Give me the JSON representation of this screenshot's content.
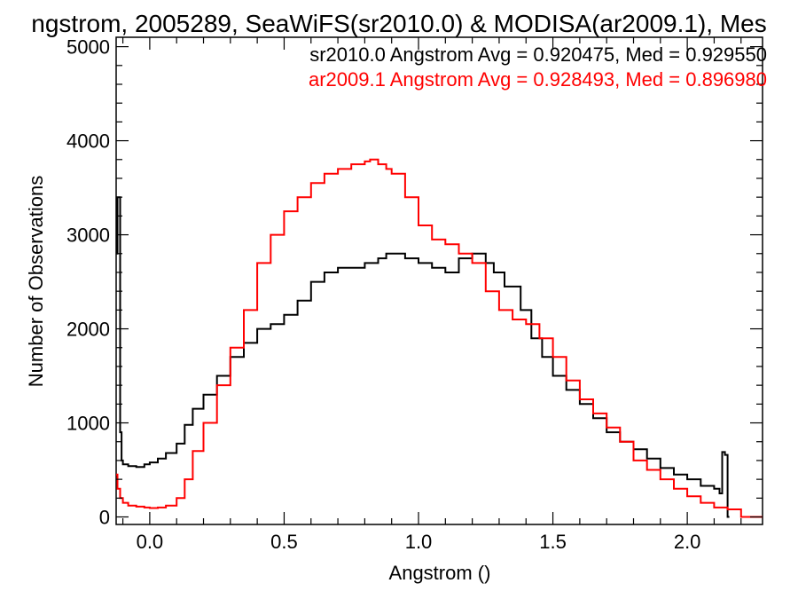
{
  "chart_data": {
    "type": "line",
    "title": "ngstrom, 2005289, SeaWiFS(sr2010.0) & MODISA(ar2009.1), Mes",
    "xlabel": "Angstrom ()",
    "ylabel": "Number of Observations",
    "xlim": [
      -0.125,
      2.28
    ],
    "ylim": [
      -80,
      5100
    ],
    "xticks": [
      0.0,
      0.5,
      1.0,
      1.5,
      2.0
    ],
    "xtick_labels": [
      "0.0",
      "0.5",
      "1.0",
      "1.5",
      "2.0"
    ],
    "yticks": [
      0,
      1000,
      2000,
      3000,
      4000,
      5000
    ],
    "ytick_labels": [
      "0",
      "1000",
      "2000",
      "3000",
      "4000",
      "5000"
    ],
    "grid": false,
    "legend_position": "top-right",
    "series": [
      {
        "name": "sr2010.0 Angstrom Avg = 0.920475, Med = 0.929550",
        "color": "#000000",
        "step": true,
        "x": [
          -0.125,
          -0.12,
          -0.115,
          -0.11,
          -0.105,
          -0.1,
          -0.08,
          -0.05,
          -0.02,
          0.0,
          0.03,
          0.06,
          0.1,
          0.13,
          0.16,
          0.2,
          0.25,
          0.3,
          0.35,
          0.4,
          0.45,
          0.5,
          0.55,
          0.6,
          0.65,
          0.7,
          0.75,
          0.8,
          0.85,
          0.88,
          0.9,
          0.95,
          1.0,
          1.05,
          1.1,
          1.15,
          1.2,
          1.25,
          1.28,
          1.32,
          1.38,
          1.42,
          1.46,
          1.5,
          1.55,
          1.6,
          1.65,
          1.7,
          1.75,
          1.8,
          1.85,
          1.9,
          1.95,
          2.0,
          2.05,
          2.1,
          2.12,
          2.13,
          2.14,
          2.15
        ],
        "y": [
          2800,
          3400,
          3400,
          900,
          600,
          560,
          540,
          530,
          560,
          580,
          620,
          680,
          780,
          980,
          1150,
          1300,
          1500,
          1700,
          1850,
          2000,
          2050,
          2150,
          2300,
          2500,
          2600,
          2650,
          2650,
          2700,
          2750,
          2800,
          2800,
          2750,
          2700,
          2650,
          2600,
          2750,
          2800,
          2700,
          2600,
          2450,
          2200,
          1900,
          1700,
          1500,
          1350,
          1200,
          1050,
          900,
          800,
          720,
          620,
          520,
          450,
          400,
          330,
          300,
          250,
          690,
          660,
          0
        ]
      },
      {
        "name": "ar2009.1 Angstrom Avg = 0.928493, Med = 0.896980",
        "color": "#ff0000",
        "step": true,
        "x": [
          -0.125,
          -0.12,
          -0.11,
          -0.1,
          -0.08,
          -0.05,
          -0.02,
          0.0,
          0.03,
          0.06,
          0.1,
          0.13,
          0.16,
          0.2,
          0.25,
          0.3,
          0.35,
          0.4,
          0.45,
          0.5,
          0.55,
          0.6,
          0.65,
          0.7,
          0.75,
          0.8,
          0.82,
          0.85,
          0.88,
          0.9,
          0.95,
          1.0,
          1.05,
          1.1,
          1.15,
          1.2,
          1.25,
          1.3,
          1.35,
          1.4,
          1.45,
          1.5,
          1.55,
          1.6,
          1.65,
          1.7,
          1.75,
          1.8,
          1.85,
          1.9,
          1.95,
          2.0,
          2.05,
          2.1,
          2.15,
          2.2,
          2.28
        ],
        "y": [
          450,
          300,
          200,
          150,
          120,
          110,
          100,
          95,
          100,
          120,
          200,
          400,
          700,
          1000,
          1400,
          1800,
          2200,
          2700,
          3000,
          3250,
          3400,
          3550,
          3650,
          3700,
          3750,
          3780,
          3800,
          3750,
          3700,
          3650,
          3400,
          3100,
          2950,
          2900,
          2800,
          2700,
          2400,
          2200,
          2100,
          2050,
          1900,
          1700,
          1450,
          1250,
          1100,
          950,
          800,
          600,
          500,
          400,
          300,
          220,
          150,
          100,
          80,
          0,
          0
        ]
      }
    ]
  }
}
